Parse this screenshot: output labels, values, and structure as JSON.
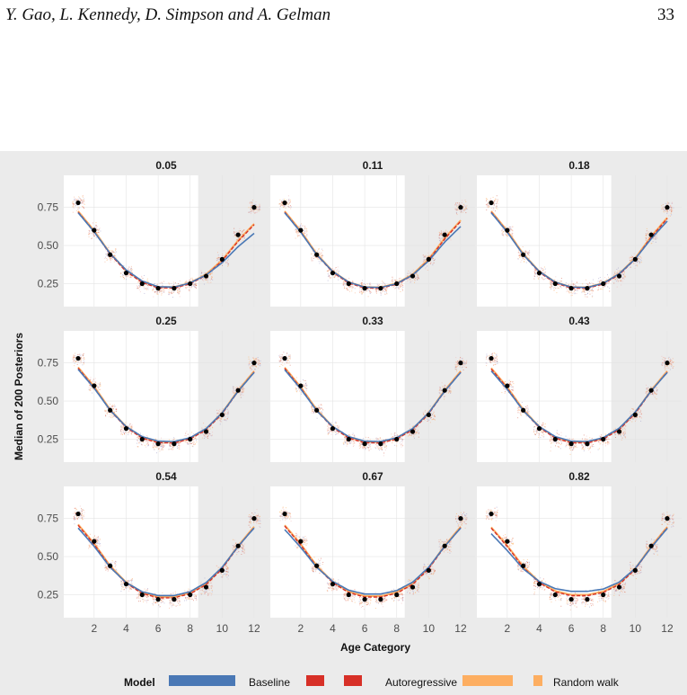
{
  "page": {
    "header_left": "Y. Gao, L. Kennedy, D. Simpson and A. Gelman",
    "page_number": "33"
  },
  "chart_data": {
    "type": "line",
    "xlabel": "Age Category",
    "ylabel": "Median of 200 Posteriors",
    "xlim": [
      0.1,
      12.9
    ],
    "ylim": [
      0.1,
      0.96
    ],
    "x_ticks": [
      2,
      4,
      6,
      8,
      10,
      12
    ],
    "y_ticks": [
      0.25,
      0.5,
      0.75
    ],
    "y_tick_labels": [
      "0.25",
      "0.50",
      "0.75"
    ],
    "shaded_x_range": [
      8.5,
      12.9
    ],
    "grid": true,
    "legend": {
      "title": "Model",
      "position": "bottom",
      "entries": [
        {
          "name": "Baseline",
          "color": "#4a78b5"
        },
        {
          "name": "Autoregressive",
          "color": "#d73027"
        },
        {
          "name": "Random walk",
          "color": "#fdae61"
        }
      ]
    },
    "truth_x": [
      1,
      2,
      3,
      4,
      5,
      6,
      7,
      8,
      9,
      10,
      11,
      12
    ],
    "truth_y": [
      0.78,
      0.6,
      0.44,
      0.32,
      0.25,
      0.22,
      0.22,
      0.25,
      0.3,
      0.41,
      0.57,
      0.75
    ],
    "panels": [
      {
        "title": "0.05",
        "baseline_y": [
          0.76,
          0.58,
          0.44,
          0.33,
          0.26,
          0.22,
          0.22,
          0.25,
          0.3,
          0.38,
          0.49,
          0.61
        ]
      },
      {
        "title": "0.11",
        "baseline_y": [
          0.76,
          0.58,
          0.43,
          0.32,
          0.25,
          0.22,
          0.22,
          0.24,
          0.3,
          0.39,
          0.52,
          0.66
        ]
      },
      {
        "title": "0.18",
        "baseline_y": [
          0.76,
          0.58,
          0.43,
          0.32,
          0.25,
          0.22,
          0.22,
          0.24,
          0.31,
          0.4,
          0.54,
          0.7
        ]
      },
      {
        "title": "0.25",
        "baseline_y": [
          0.75,
          0.58,
          0.43,
          0.32,
          0.26,
          0.23,
          0.23,
          0.25,
          0.31,
          0.41,
          0.56,
          0.73
        ]
      },
      {
        "title": "0.33",
        "baseline_y": [
          0.75,
          0.57,
          0.43,
          0.32,
          0.26,
          0.23,
          0.23,
          0.25,
          0.31,
          0.41,
          0.56,
          0.73
        ]
      },
      {
        "title": "0.43",
        "baseline_y": [
          0.74,
          0.57,
          0.43,
          0.32,
          0.26,
          0.23,
          0.23,
          0.25,
          0.31,
          0.42,
          0.56,
          0.73
        ]
      },
      {
        "title": "0.54",
        "baseline_y": [
          0.73,
          0.56,
          0.42,
          0.32,
          0.26,
          0.24,
          0.24,
          0.26,
          0.32,
          0.42,
          0.56,
          0.73
        ]
      },
      {
        "title": "0.67",
        "baseline_y": [
          0.72,
          0.55,
          0.42,
          0.33,
          0.27,
          0.25,
          0.25,
          0.27,
          0.32,
          0.42,
          0.56,
          0.73
        ]
      },
      {
        "title": "0.82",
        "baseline_y": [
          0.69,
          0.53,
          0.41,
          0.33,
          0.28,
          0.27,
          0.27,
          0.28,
          0.32,
          0.41,
          0.55,
          0.73
        ]
      }
    ]
  }
}
